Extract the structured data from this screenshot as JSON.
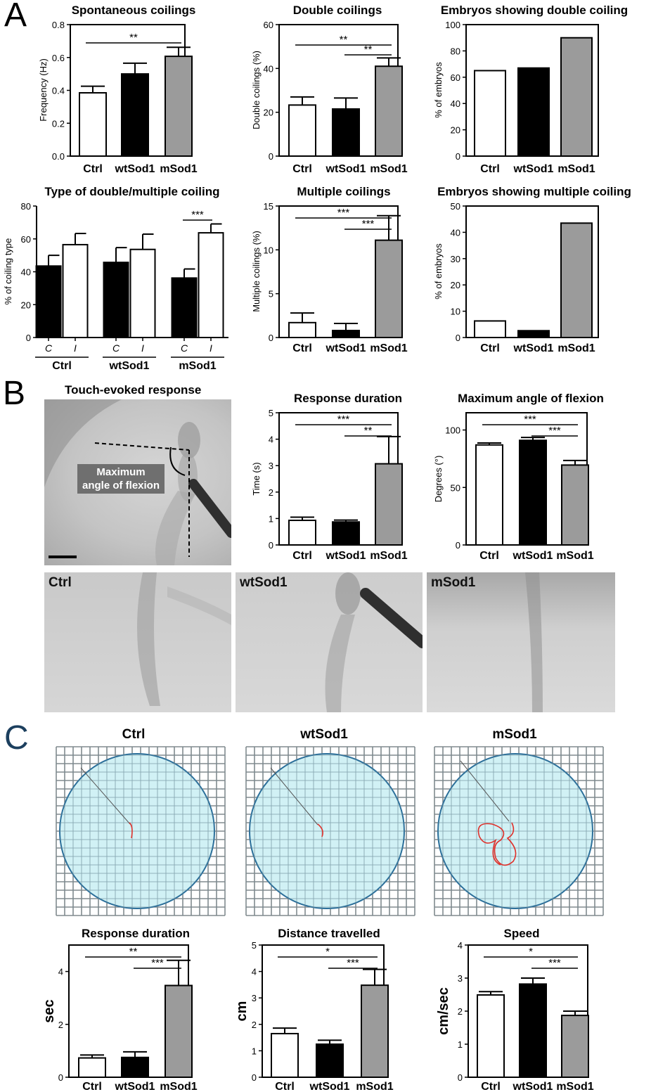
{
  "panel_letters": {
    "a": "A",
    "b": "B",
    "c": "C"
  },
  "photo": {
    "title": "Touch-evoked response",
    "annotation_line1": "Maximum",
    "annotation_line2": "angle of flexion",
    "strip_labels": [
      "Ctrl",
      "wtSod1",
      "mSod1"
    ]
  },
  "tracks": {
    "titles": [
      "Ctrl",
      "wtSod1",
      "mSod1"
    ],
    "colors": {
      "dish": "#c9eef3",
      "rim": "#2b6f9a",
      "grid": "#8a8a8a",
      "track": "#e0302a"
    }
  },
  "colors": {
    "ctrl": "#ffffff",
    "wt": "#000000",
    "mut": "#9b9b9b"
  },
  "chart_data": [
    {
      "id": "a1",
      "type": "bar",
      "title": "Spontaneous coilings",
      "ylabel": "Frequency (Hz)",
      "categories": [
        "Ctrl",
        "wtSod1",
        "mSod1"
      ],
      "values": [
        0.385,
        0.5,
        0.607
      ],
      "errors": [
        0.04,
        0.065,
        0.055
      ],
      "ylim": [
        0,
        0.8
      ],
      "yticks": [
        "0.0",
        "0.2",
        "0.4",
        "0.6",
        "0.8"
      ],
      "significance": [
        {
          "from": "Ctrl",
          "to": "mSod1",
          "label": "**"
        }
      ]
    },
    {
      "id": "a2",
      "type": "bar",
      "title": "Double coilings",
      "ylabel": "Double coilings (%)",
      "categories": [
        "Ctrl",
        "wtSod1",
        "mSod1"
      ],
      "values": [
        23.3,
        21.5,
        41
      ],
      "errors": [
        3.7,
        5,
        3.8
      ],
      "ylim": [
        0,
        60
      ],
      "yticks": [
        "0",
        "20",
        "40",
        "60"
      ],
      "significance": [
        {
          "from": "Ctrl",
          "to": "mSod1",
          "label": "**"
        },
        {
          "from": "wtSod1",
          "to": "mSod1",
          "label": "**"
        }
      ]
    },
    {
      "id": "a3",
      "type": "bar",
      "title": "Embryos showing double coiling",
      "ylabel": "% of embryos",
      "categories": [
        "Ctrl",
        "wtSod1",
        "mSod1"
      ],
      "values": [
        65,
        67,
        90
      ],
      "errors": [
        0,
        0,
        0
      ],
      "ylim": [
        0,
        100
      ],
      "yticks": [
        "0",
        "20",
        "40",
        "60",
        "80",
        "100"
      ],
      "significance": []
    },
    {
      "id": "a4",
      "type": "bar",
      "title": "Type of double/multiple coiling",
      "ylabel": "% of coiling type",
      "groups": [
        "Ctrl",
        "wtSod1",
        "mSod1"
      ],
      "subcategories": [
        "C",
        "I"
      ],
      "series": [
        {
          "values": [
            43.5,
            45.7,
            36.2
          ],
          "errors": [
            6.5,
            9,
            5.5
          ]
        },
        {
          "values": [
            56.5,
            53.6,
            63.7
          ],
          "errors": [
            6.8,
            9.3,
            5.4
          ]
        }
      ],
      "ylim": [
        0,
        80
      ],
      "yticks": [
        "0",
        "20",
        "40",
        "60",
        "80"
      ],
      "significance": [
        {
          "group": "mSod1",
          "label": "***"
        }
      ]
    },
    {
      "id": "a5",
      "type": "bar",
      "title": "Multiple coilings",
      "ylabel": "Multiple coilings (%)",
      "categories": [
        "Ctrl",
        "wtSod1",
        "mSod1"
      ],
      "values": [
        1.7,
        0.8,
        11.1
      ],
      "errors": [
        1.1,
        0.8,
        2.8
      ],
      "ylim": [
        0,
        15
      ],
      "yticks": [
        "0",
        "5",
        "10",
        "15"
      ],
      "significance": [
        {
          "from": "Ctrl",
          "to": "mSod1",
          "label": "***"
        },
        {
          "from": "wtSod1",
          "to": "mSod1",
          "label": "***"
        }
      ]
    },
    {
      "id": "a6",
      "type": "bar",
      "title": "Embryos showing multiple coiling",
      "ylabel": "% of embryos",
      "categories": [
        "Ctrl",
        "wtSod1",
        "mSod1"
      ],
      "values": [
        6.3,
        2.6,
        43.5
      ],
      "errors": [
        0,
        0,
        0
      ],
      "ylim": [
        0,
        50
      ],
      "yticks": [
        "0",
        "10",
        "20",
        "30",
        "40",
        "50"
      ],
      "significance": []
    },
    {
      "id": "b1",
      "type": "bar",
      "title": "Response duration",
      "ylabel": "Time (s)",
      "categories": [
        "Ctrl",
        "wtSod1",
        "mSod1"
      ],
      "values": [
        0.93,
        0.87,
        3.07
      ],
      "errors": [
        0.12,
        0.07,
        1.03
      ],
      "ylim": [
        0,
        5
      ],
      "yticks": [
        "0",
        "1",
        "2",
        "3",
        "4",
        "5"
      ],
      "significance": [
        {
          "from": "Ctrl",
          "to": "mSod1",
          "label": "***"
        },
        {
          "from": "wtSod1",
          "to": "mSod1",
          "label": "**"
        }
      ]
    },
    {
      "id": "b2",
      "type": "bar",
      "title": "Maximum angle of flexion",
      "ylabel": "Degrees (°)",
      "categories": [
        "Ctrl",
        "wtSod1",
        "mSod1"
      ],
      "values": [
        87,
        91,
        69.5
      ],
      "errors": [
        1.7,
        2.5,
        4
      ],
      "ylim": [
        0,
        115
      ],
      "yticks": [
        "0",
        "50",
        "100"
      ],
      "ytickvals": [
        0,
        50,
        100
      ],
      "significance": [
        {
          "from": "Ctrl",
          "to": "mSod1",
          "label": "***"
        },
        {
          "from": "wtSod1",
          "to": "mSod1",
          "label": "***"
        }
      ]
    },
    {
      "id": "c1",
      "type": "bar",
      "title": "Response duration",
      "ylabel": "sec",
      "categories": [
        "Ctrl",
        "wtSod1",
        "mSod1"
      ],
      "values": [
        0.73,
        0.75,
        3.47
      ],
      "errors": [
        0.11,
        0.21,
        0.95
      ],
      "ylim": [
        0,
        5
      ],
      "yticks": [
        "0",
        "2",
        "4"
      ],
      "ytickvals": [
        0,
        2,
        4
      ],
      "significance": [
        {
          "from": "Ctrl",
          "to": "mSod1",
          "label": "**"
        },
        {
          "from": "wtSod1",
          "to": "mSod1",
          "label": "***"
        }
      ]
    },
    {
      "id": "c2",
      "type": "bar",
      "title": "Distance travelled",
      "ylabel": "cm",
      "categories": [
        "Ctrl",
        "wtSod1",
        "mSod1"
      ],
      "values": [
        1.65,
        1.25,
        3.48
      ],
      "errors": [
        0.21,
        0.15,
        0.6
      ],
      "ylim": [
        0,
        5
      ],
      "yticks": [
        "0",
        "1",
        "2",
        "3",
        "4",
        "5"
      ],
      "significance": [
        {
          "from": "Ctrl",
          "to": "mSod1",
          "label": "*"
        },
        {
          "from": "wtSod1",
          "to": "mSod1",
          "label": "***"
        }
      ]
    },
    {
      "id": "c3",
      "type": "bar",
      "title": "Speed",
      "ylabel": "cm/sec",
      "categories": [
        "Ctrl",
        "wtSod1",
        "mSod1"
      ],
      "values": [
        2.49,
        2.82,
        1.87
      ],
      "errors": [
        0.1,
        0.18,
        0.13
      ],
      "ylim": [
        0,
        4
      ],
      "yticks": [
        "0",
        "1",
        "2",
        "3",
        "4"
      ],
      "significance": [
        {
          "from": "Ctrl",
          "to": "mSod1",
          "label": "*"
        },
        {
          "from": "wtSod1",
          "to": "mSod1",
          "label": "***"
        }
      ]
    }
  ]
}
